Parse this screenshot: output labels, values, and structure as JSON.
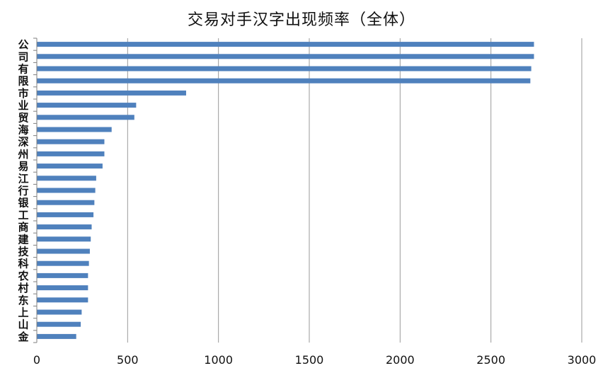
{
  "chart_data": {
    "type": "bar",
    "orientation": "horizontal",
    "title": "交易对手汉字出现频率（全体）",
    "xlabel": "",
    "ylabel": "",
    "xlim": [
      0,
      3000
    ],
    "x_ticks": [
      0,
      500,
      1000,
      1500,
      2000,
      2500,
      3000
    ],
    "x_tick_labels": [
      "0",
      "500",
      "1000",
      "1500",
      "2000",
      "2500",
      "3000"
    ],
    "grid": "vertical",
    "legend": "none",
    "bar_color": "#4f81bd",
    "categories": [
      "公",
      "司",
      "有",
      "限",
      "市",
      "业",
      "贸",
      "海",
      "深",
      "州",
      "易",
      "江",
      "行",
      "银",
      "工",
      "商",
      "建",
      "技",
      "科",
      "农",
      "村",
      "东",
      "上",
      "山",
      "金"
    ],
    "values": [
      2735,
      2735,
      2720,
      2715,
      820,
      545,
      535,
      410,
      370,
      370,
      360,
      325,
      320,
      315,
      310,
      300,
      295,
      290,
      285,
      280,
      280,
      280,
      245,
      240,
      215
    ]
  }
}
